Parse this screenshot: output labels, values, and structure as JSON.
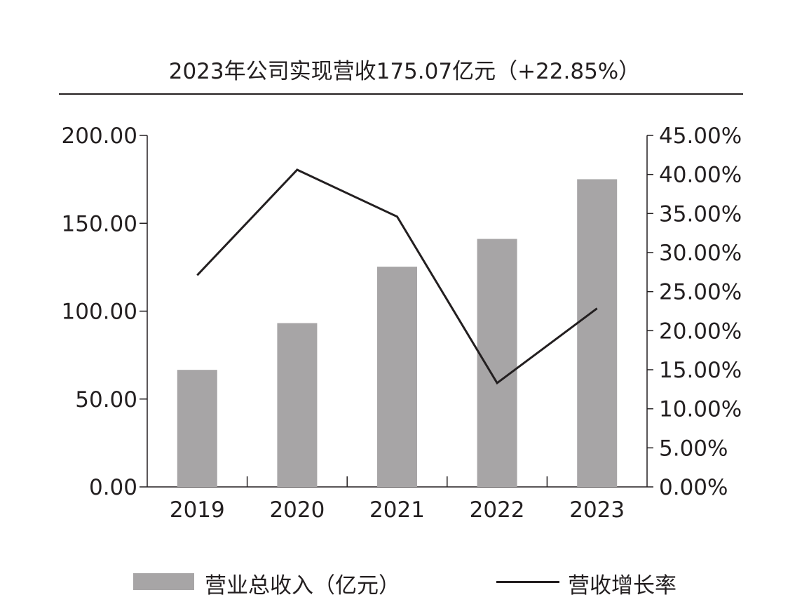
{
  "chart_data": {
    "type": "bar",
    "title": "2023年公司实现营收175.07亿元（+22.85%）",
    "categories": [
      "2019",
      "2020",
      "2021",
      "2022",
      "2023"
    ],
    "series": [
      {
        "name": "营业总收入（亿元）",
        "type": "bar",
        "axis": "left",
        "values": [
          66.6,
          93.2,
          125.3,
          141.1,
          175.07
        ]
      },
      {
        "name": "营收增长率",
        "type": "line",
        "axis": "right",
        "values": [
          27.1,
          40.6,
          34.6,
          13.3,
          22.85
        ]
      }
    ],
    "y_left": {
      "ylim": [
        0,
        200
      ],
      "ticks": [
        "0.00",
        "50.00",
        "100.00",
        "150.00",
        "200.00"
      ]
    },
    "y_right": {
      "ylim": [
        0,
        45
      ],
      "ticks": [
        "0.00%",
        "5.00%",
        "10.00%",
        "15.00%",
        "20.00%",
        "25.00%",
        "30.00%",
        "35.00%",
        "40.00%",
        "45.00%"
      ]
    },
    "legend_position": "bottom",
    "grid": false,
    "colors": {
      "bar": "#a7a5a6",
      "line": "#231f20",
      "axis": "#231f20"
    }
  }
}
